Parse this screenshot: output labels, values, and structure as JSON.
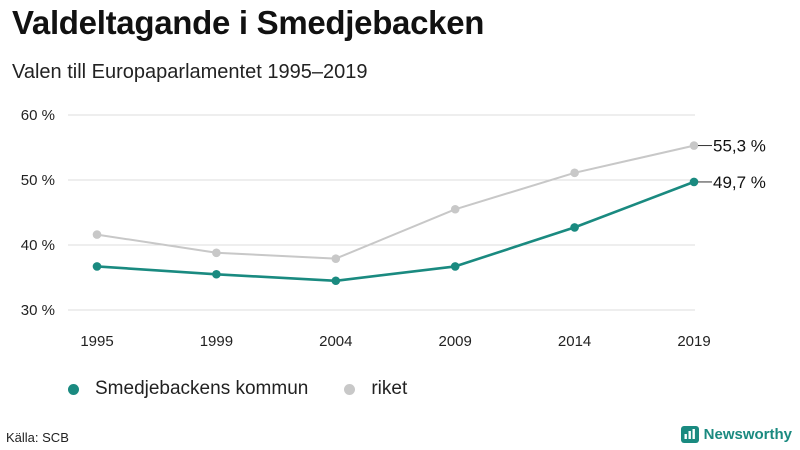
{
  "header": {
    "title": "Valdeltagande i Smedjebacken",
    "subtitle": "Valen till Europaparlamentet 1995–2019"
  },
  "footer": {
    "source": "Källa: SCB",
    "brand": "Newsworthy"
  },
  "colors": {
    "kommun": "#1a8a80",
    "riket": "#c8c8c8",
    "grid": "#dddddd",
    "axis_text": "#222222"
  },
  "chart_data": {
    "type": "line",
    "title": "Valdeltagande i Smedjebacken",
    "subtitle": "Valen till Europaparlamentet 1995–2019",
    "categories": [
      "1995",
      "1999",
      "2004",
      "2009",
      "2014",
      "2019"
    ],
    "y_ticks": [
      30,
      40,
      50,
      60
    ],
    "y_tick_labels": [
      "30 %",
      "40 %",
      "50 %",
      "60 %"
    ],
    "ylim": [
      30,
      60
    ],
    "grid": true,
    "legend_position": "bottom-left",
    "series": [
      {
        "name": "Smedjebackens kommun",
        "key": "kommun",
        "values": [
          36.7,
          35.5,
          34.5,
          36.7,
          42.7,
          49.7
        ],
        "end_label": "49,7 %"
      },
      {
        "name": "riket",
        "key": "riket",
        "values": [
          41.6,
          38.8,
          37.9,
          45.5,
          51.1,
          55.3
        ],
        "end_label": "55,3 %"
      }
    ]
  }
}
